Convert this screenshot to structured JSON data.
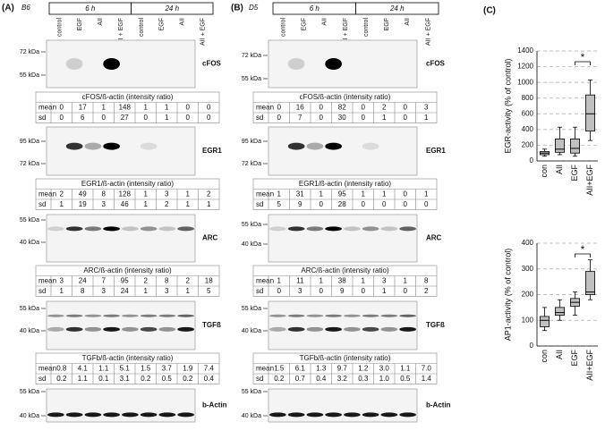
{
  "panels": [
    {
      "label": "(A)",
      "strain": "B6",
      "groups": [
        "6 h",
        "24 h"
      ],
      "lanes": [
        "control",
        "EGF",
        "AII",
        "AII + EGF",
        "control",
        "EGF",
        "AII",
        "AII + EGF"
      ],
      "sections": [
        {
          "blot": "cFOS",
          "markers": [
            "72 kDa",
            "55 kDa"
          ],
          "table": {
            "title": "cFOS/ß-actin (intensity ratio)",
            "rows": [
              [
                "mean",
                "0",
                "17",
                "1",
                "148",
                "1",
                "1",
                "0",
                "0"
              ],
              [
                "sd",
                "0",
                "6",
                "0",
                "27",
                "0",
                "1",
                "0",
                "0"
              ]
            ]
          }
        },
        {
          "blot": "EGR1",
          "markers": [
            "95 kDa",
            "72 kDa"
          ],
          "table": {
            "title": "EGR1/ß-actin (intensity ratio)",
            "rows": [
              [
                "mean",
                "2",
                "49",
                "8",
                "128",
                "1",
                "3",
                "1",
                "2"
              ],
              [
                "sd",
                "1",
                "19",
                "3",
                "46",
                "1",
                "2",
                "1",
                "1"
              ]
            ]
          }
        },
        {
          "blot": "ARC",
          "markers": [
            "55 kDa",
            "40 kDa"
          ],
          "table": {
            "title": "ARC/ß-actin (intensity ratio)",
            "rows": [
              [
                "mean",
                "3",
                "24",
                "7",
                "95",
                "2",
                "8",
                "2",
                "18"
              ],
              [
                "sd",
                "1",
                "8",
                "3",
                "24",
                "1",
                "3",
                "1",
                "5"
              ]
            ]
          }
        },
        {
          "blot": "TGFß",
          "markers": [
            "55 kDa",
            "40 kDa"
          ],
          "table": {
            "title": "TGFb/ß-actin (intensity ratio)",
            "rows": [
              [
                "mean",
                "0.8",
                "4.1",
                "1.1",
                "5.1",
                "1.5",
                "3.7",
                "1.9",
                "7.4"
              ],
              [
                "sd",
                "0.2",
                "1.1",
                "0.1",
                "3.1",
                "0.2",
                "0.5",
                "0.2",
                "0.4"
              ]
            ]
          }
        },
        {
          "blot": "b-Actin",
          "markers": [
            "55 kDa",
            "40 kDa"
          ]
        }
      ]
    },
    {
      "label": "(B)",
      "strain": "D5",
      "groups": [
        "6 h",
        "24 h"
      ],
      "lanes": [
        "control",
        "EGF",
        "AII",
        "AII + EGF",
        "control",
        "EGF",
        "AII",
        "AII + EGF"
      ],
      "sections": [
        {
          "blot": "cFOS",
          "markers": [
            "72 kDa",
            "55 kDa"
          ],
          "table": {
            "title": "cFOS/ß-actin (intensity ratio)",
            "rows": [
              [
                "mean",
                "0",
                "16",
                "0",
                "82",
                "0",
                "2",
                "0",
                "3"
              ],
              [
                "sd",
                "0",
                "7",
                "0",
                "30",
                "0",
                "1",
                "0",
                "1"
              ]
            ]
          }
        },
        {
          "blot": "EGR1",
          "markers": [
            "95 kDa",
            "72 kDa"
          ],
          "table": {
            "title": "EGR1/ß-actin (intensity ratio)",
            "rows": [
              [
                "mean",
                "1",
                "31",
                "1",
                "95",
                "1",
                "1",
                "0",
                "1"
              ],
              [
                "sd",
                "5",
                "9",
                "0",
                "28",
                "0",
                "0",
                "0",
                "0"
              ]
            ]
          }
        },
        {
          "blot": "ARC",
          "markers": [
            "55 kDa",
            "40 kDa"
          ],
          "table": {
            "title": "ARC/ß-actin (intensity ratio)",
            "rows": [
              [
                "mean",
                "1",
                "11",
                "1",
                "38",
                "1",
                "3",
                "1",
                "8"
              ],
              [
                "sd",
                "0",
                "3",
                "0",
                "9",
                "0",
                "1",
                "0",
                "2"
              ]
            ]
          }
        },
        {
          "blot": "TGFß",
          "markers": [
            "55 kDa",
            "40 kDa"
          ],
          "table": {
            "title": "TGFb/ß-actin (intensity ratio)",
            "rows": [
              [
                "mean",
                "1.5",
                "6.1",
                "1.3",
                "9.7",
                "1.2",
                "3.0",
                "1.1",
                "7.0"
              ],
              [
                "sd",
                "0.2",
                "0.7",
                "0.4",
                "3.2",
                "0.3",
                "1.0",
                "0.5",
                "1.4"
              ]
            ]
          }
        },
        {
          "blot": "b-Actin",
          "markers": [
            "55 kDa",
            "40 kDa"
          ]
        }
      ]
    }
  ],
  "panel_c": {
    "label": "(C)"
  },
  "chart_data": [
    {
      "type": "box",
      "ylabel": "EGR-activity (% of control)",
      "categories": [
        "con",
        "AII",
        "EGF",
        "AII+EGF"
      ],
      "boxes": [
        {
          "min": 60,
          "q1": 80,
          "median": 100,
          "q3": 120,
          "max": 150
        },
        {
          "min": 80,
          "q1": 110,
          "median": 150,
          "q3": 280,
          "max": 430
        },
        {
          "min": 60,
          "q1": 100,
          "median": 160,
          "q3": 280,
          "max": 430
        },
        {
          "min": 260,
          "q1": 380,
          "median": 600,
          "q3": 840,
          "max": 1030
        }
      ],
      "color": "#c0c0c0",
      "ylim": [
        0,
        1400
      ],
      "yticks": [
        0,
        200,
        400,
        600,
        800,
        1000,
        1200,
        1400
      ],
      "grid": true,
      "annotation": "*"
    },
    {
      "type": "box",
      "ylabel": "AP1-activity (% of control)",
      "categories": [
        "con",
        "AII",
        "EGF",
        "AII+EGF"
      ],
      "boxes": [
        {
          "min": 60,
          "q1": 75,
          "median": 100,
          "q3": 115,
          "max": 150
        },
        {
          "min": 100,
          "q1": 120,
          "median": 130,
          "q3": 150,
          "max": 180
        },
        {
          "min": 120,
          "q1": 155,
          "median": 170,
          "q3": 185,
          "max": 210
        },
        {
          "min": 180,
          "q1": 200,
          "median": 210,
          "q3": 290,
          "max": 335
        }
      ],
      "color": "#c0c0c0",
      "ylim": [
        0,
        400
      ],
      "yticks": [
        0,
        100,
        200,
        300,
        400
      ],
      "grid": true,
      "annotation": "*"
    }
  ]
}
